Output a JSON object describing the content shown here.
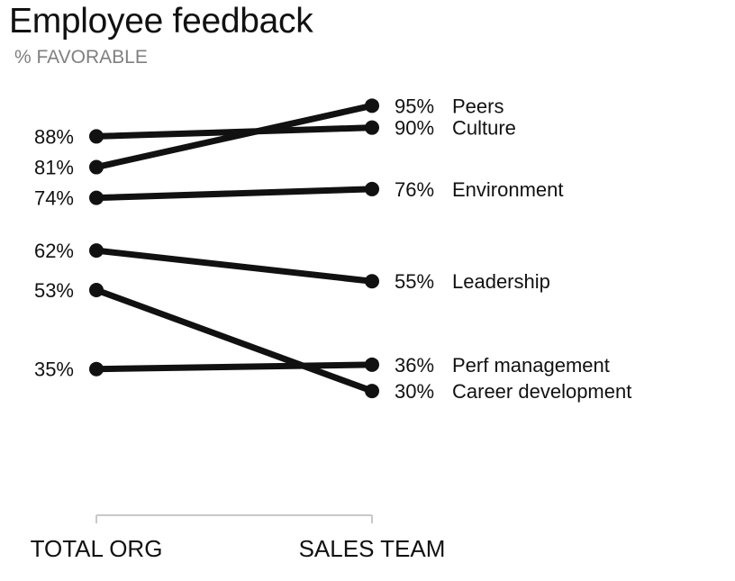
{
  "title": "Employee feedback",
  "subtitle": "% FAVORABLE",
  "chart_data": {
    "type": "line",
    "title": "Employee feedback",
    "subtitle": "% FAVORABLE",
    "categories": [
      "TOTAL ORG",
      "SALES TEAM"
    ],
    "series": [
      {
        "name": "Peers",
        "values": [
          81,
          95
        ]
      },
      {
        "name": "Culture",
        "values": [
          88,
          90
        ]
      },
      {
        "name": "Environment",
        "values": [
          74,
          76
        ]
      },
      {
        "name": "Leadership",
        "values": [
          62,
          55
        ]
      },
      {
        "name": "Perf management",
        "values": [
          35,
          36
        ]
      },
      {
        "name": "Career development",
        "values": [
          53,
          30
        ]
      }
    ],
    "ylim": [
      0,
      100
    ],
    "grid": false,
    "legend": "none",
    "colors": {
      "line": "#111111",
      "axis": "#c8c8c8",
      "subtitle": "#808080"
    }
  }
}
